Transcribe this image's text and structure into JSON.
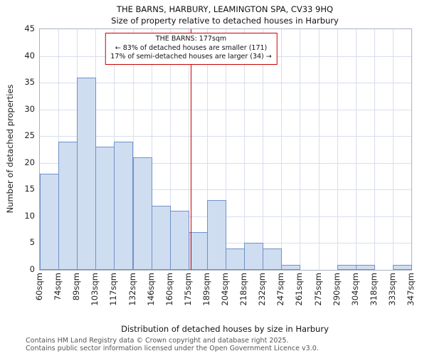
{
  "title": "THE BARNS, HARBURY, LEAMINGTON SPA, CV33 9HQ",
  "subtitle": "Size of property relative to detached houses in Harbury",
  "chart_data": {
    "type": "bar",
    "histogram": true,
    "title": "THE BARNS, HARBURY, LEAMINGTON SPA, CV33 9HQ",
    "subtitle": "Size of property relative to detached houses in Harbury",
    "xlabel": "Distribution of detached houses by size in Harbury",
    "ylabel": "Number of detached properties",
    "ylim": [
      0,
      45
    ],
    "ytick_step": 5,
    "grid": true,
    "bin_edge_labels": [
      "60sqm",
      "74sqm",
      "89sqm",
      "103sqm",
      "117sqm",
      "132sqm",
      "146sqm",
      "160sqm",
      "175sqm",
      "189sqm",
      "204sqm",
      "218sqm",
      "232sqm",
      "247sqm",
      "261sqm",
      "275sqm",
      "290sqm",
      "304sqm",
      "318sqm",
      "333sqm",
      "347sqm"
    ],
    "bin_edges_sqm": [
      60,
      74,
      89,
      103,
      117,
      132,
      146,
      160,
      175,
      189,
      204,
      218,
      232,
      247,
      261,
      275,
      290,
      304,
      318,
      333,
      347
    ],
    "values": [
      18,
      24,
      36,
      23,
      24,
      21,
      12,
      11,
      7,
      13,
      4,
      5,
      4,
      1,
      0,
      0,
      1,
      1,
      0,
      1
    ],
    "bar_fill": "#cfddf1",
    "bar_border": "#7191c9",
    "gridline_color": "#d7deec",
    "marker": {
      "value_sqm": 177,
      "color": "#cc0000",
      "label_lines": [
        "THE BARNS: 177sqm",
        "← 83% of detached houses are smaller (171)",
        "17% of semi-detached houses are larger (34) →"
      ]
    }
  },
  "footer": {
    "line1": "Contains HM Land Registry data © Crown copyright and database right 2025.",
    "line2": "Contains public sector information licensed under the Open Government Licence v3.0."
  }
}
